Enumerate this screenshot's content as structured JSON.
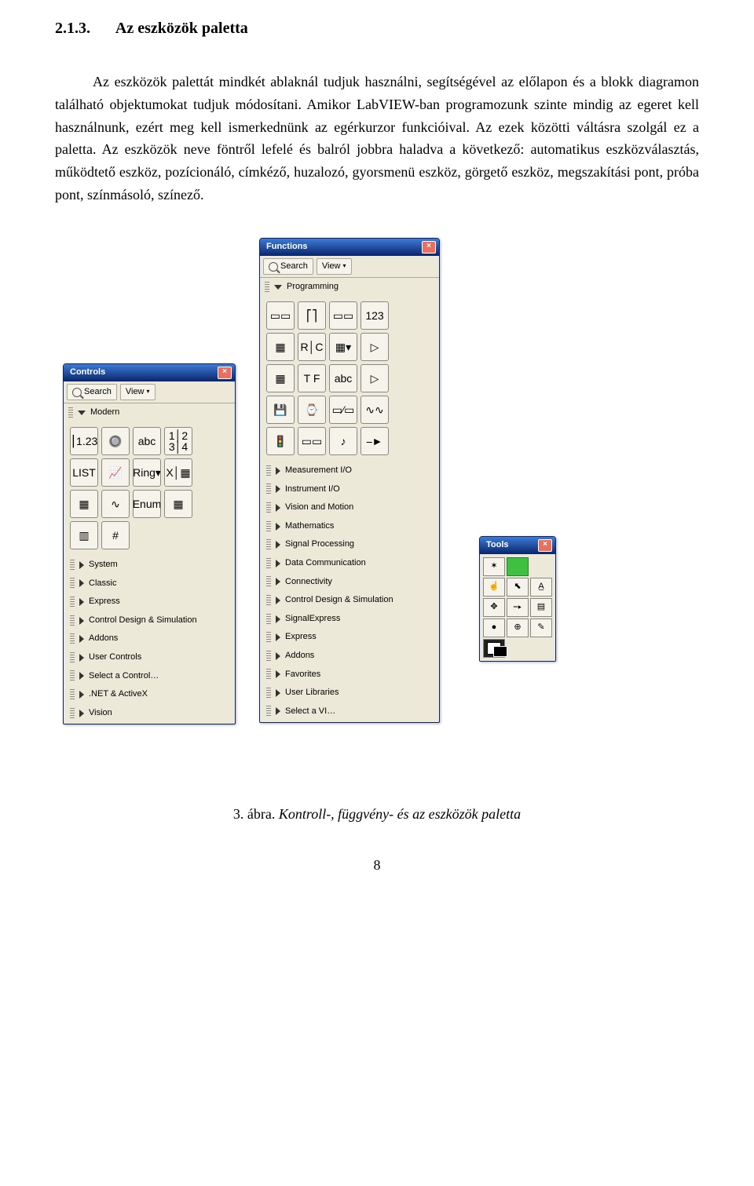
{
  "section": {
    "number": "2.1.3.",
    "title": "Az eszközök paletta"
  },
  "paragraph": "Az eszközök palettát mindkét ablaknál tudjuk használni, segítségével az előlapon és a blokk diagramon található objektumokat tudjuk módosítani. Amikor LabVIEW-ban programozunk szinte mindig az egeret kell használnunk, ezért meg kell ismerkednünk az egérkurzor funkcióival. Az ezek közötti váltásra szolgál ez a paletta. Az eszközök neve föntről lefelé és balról jobbra haladva a következő: automatikus eszközválasztás, működtető eszköz, pozícionáló, címkéző, huzalozó, gyorsmenü eszköz, görgető eszköz, megszakítási pont, próba pont, színmásoló, színező.",
  "controls": {
    "title": "Controls",
    "search": "Search",
    "view": "View",
    "group": "Modern",
    "icons": [
      "⎮1.23",
      "🔘",
      "abc",
      "1│2\n3│4",
      "LIST",
      "📈",
      "Ring▾",
      "X│▦",
      "▦",
      "∿",
      "Enum",
      "▦",
      "▥",
      "#",
      "",
      ""
    ],
    "categories": [
      "System",
      "Classic",
      "Express",
      "Control Design & Simulation",
      "Addons",
      "User Controls",
      "Select a Control…",
      ".NET & ActiveX",
      "Vision"
    ]
  },
  "functions": {
    "title": "Functions",
    "search": "Search",
    "view": "View",
    "group": "Programming",
    "icons": [
      "▭▭",
      "⎡⎤",
      "▭▭",
      "123",
      "▦",
      "R│C",
      "▦▾",
      "▷",
      "▦",
      "T F",
      "abc",
      "▷",
      "💾",
      "⌚",
      "▭⁄▭",
      "∿∿",
      "🚦",
      "▭▭",
      "♪",
      "⎯►"
    ],
    "categories": [
      "Measurement I/O",
      "Instrument I/O",
      "Vision and Motion",
      "Mathematics",
      "Signal Processing",
      "Data Communication",
      "Connectivity",
      "Control Design & Simulation",
      "SignalExpress",
      "Express",
      "Addons",
      "Favorites",
      "User Libraries",
      "Select a VI…"
    ]
  },
  "tools": {
    "title": "Tools",
    "cells": [
      "✶",
      "",
      "",
      "☝",
      "⬉",
      "A̲",
      "✥",
      "⎯▸",
      "▤",
      "●",
      "⊕",
      "✎",
      "◧",
      "",
      ""
    ]
  },
  "caption": {
    "number": "3. ábra.",
    "text": "Kontroll-, függvény- és az eszközök paletta"
  },
  "page_number": "8"
}
